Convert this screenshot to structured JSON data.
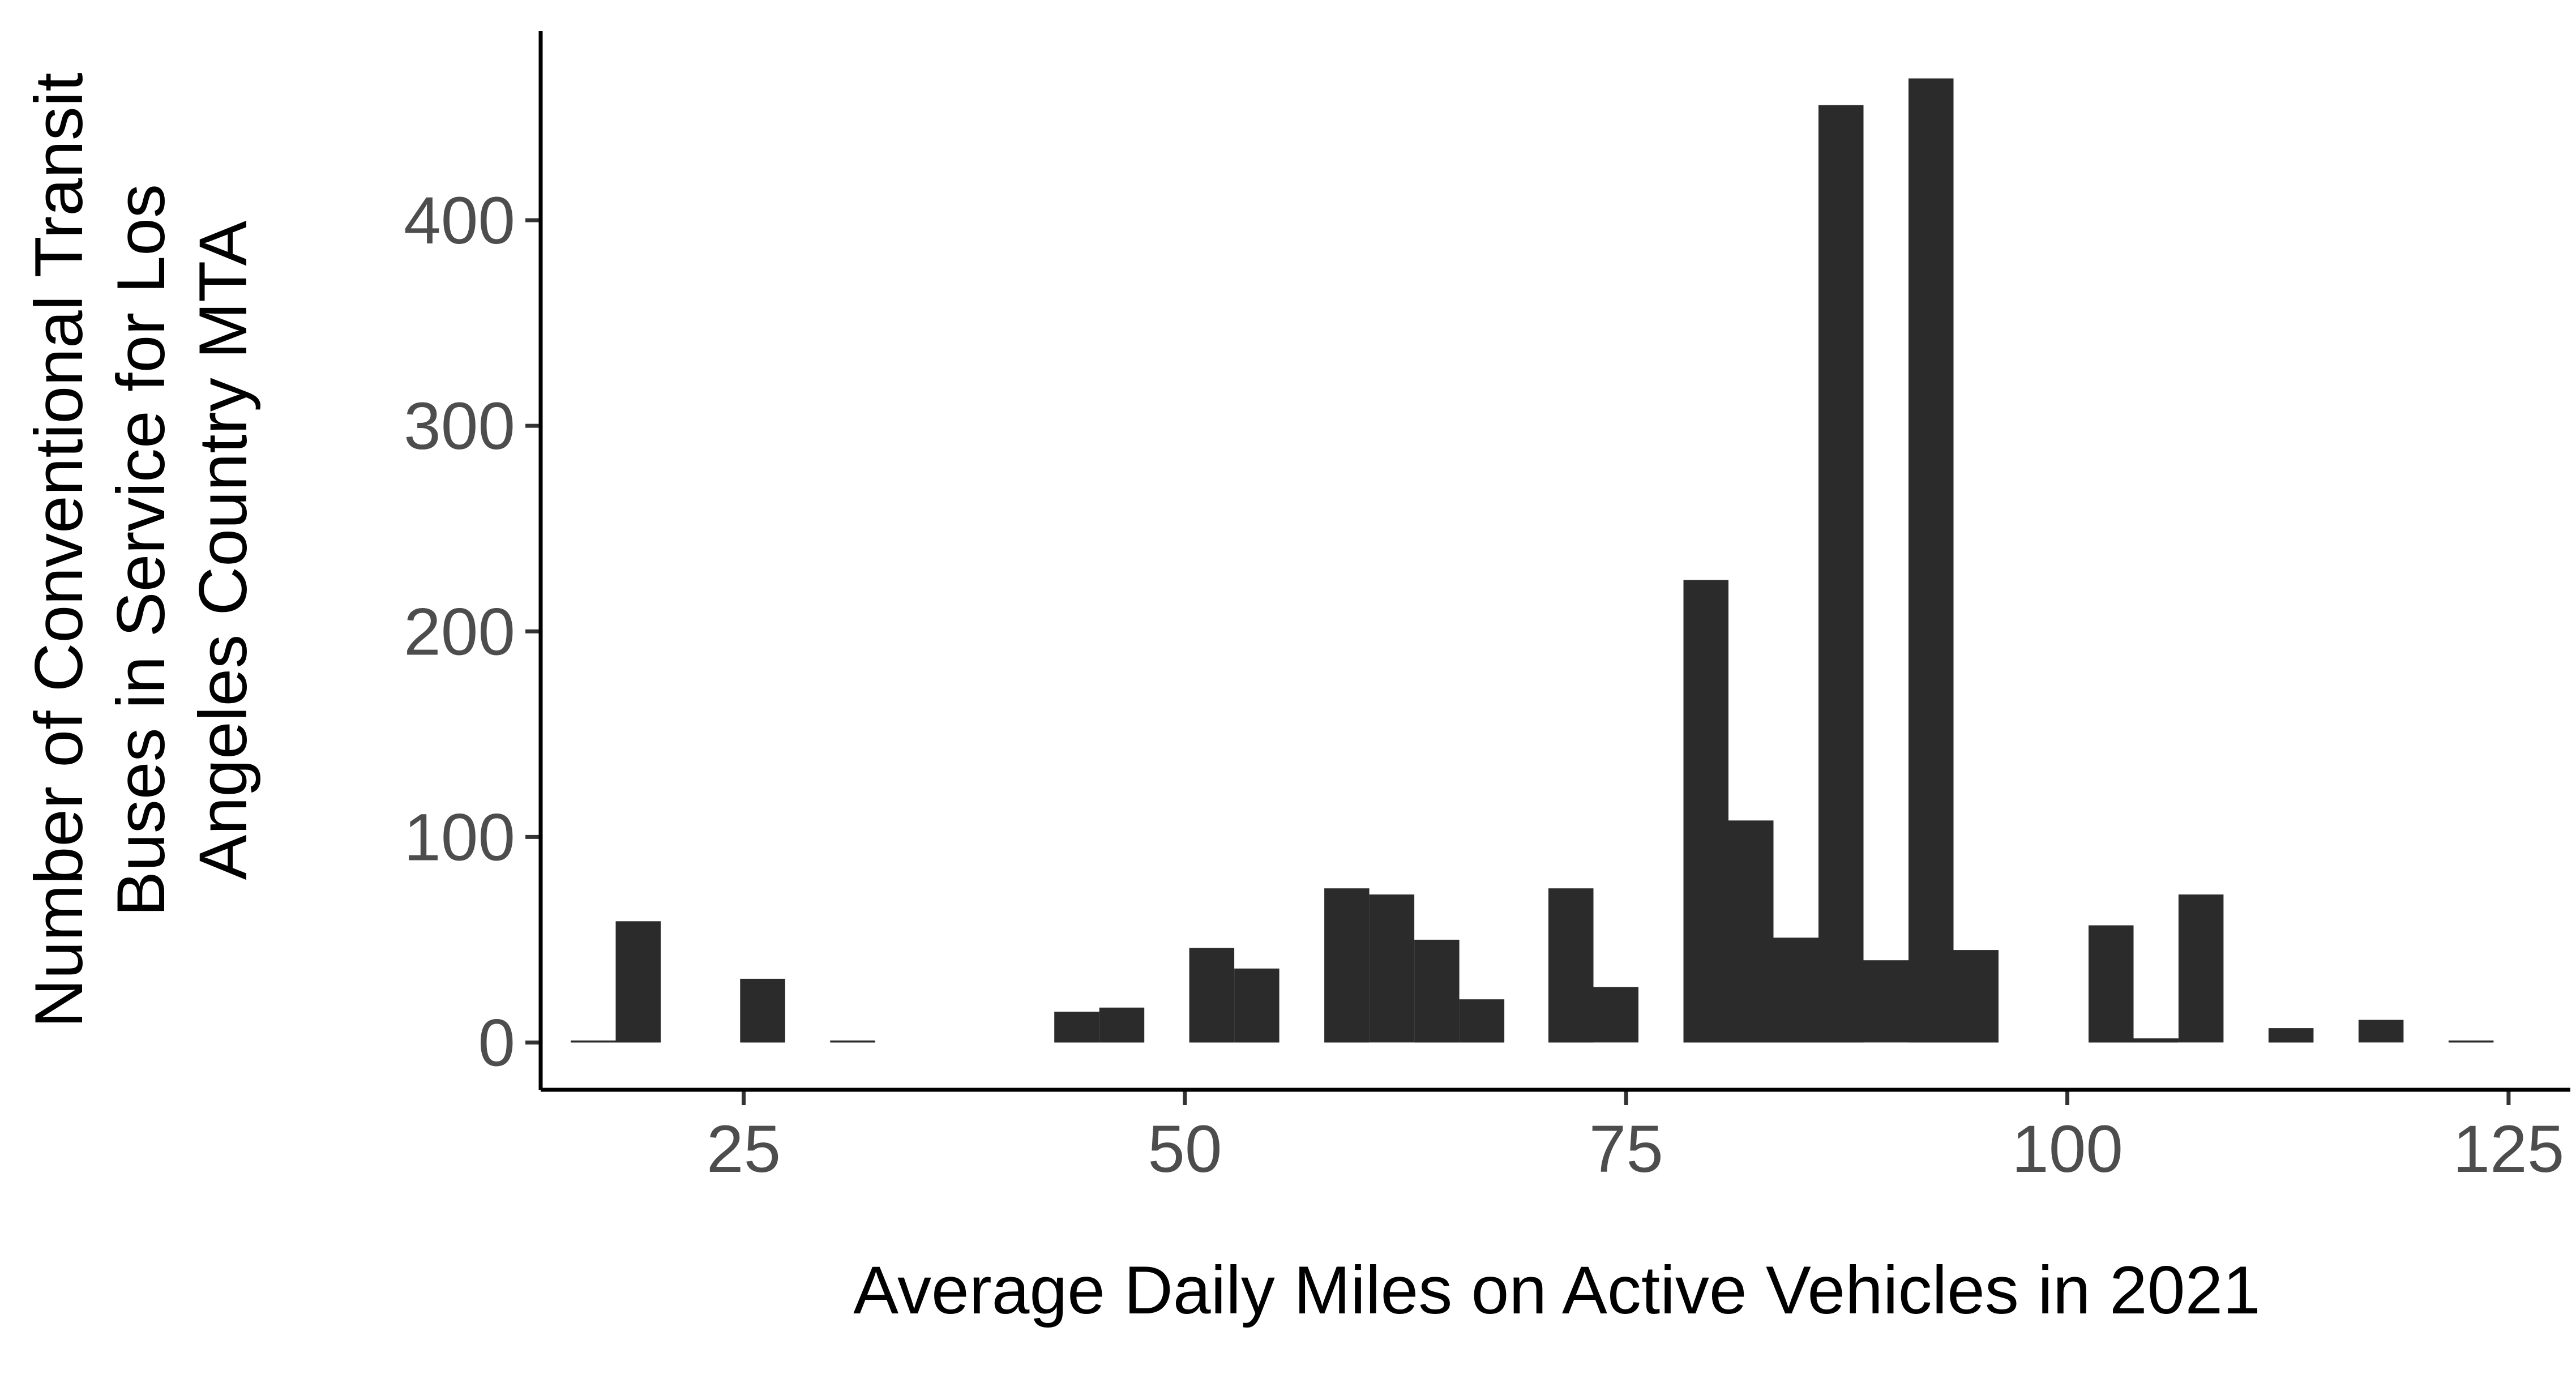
{
  "chart_data": {
    "type": "bar",
    "subtype": "histogram",
    "xlabel": "Average Daily Miles on Active Vehicles in 2021",
    "ylabel_lines": [
      "Number of Conventional Transit",
      "Buses in Service for Los",
      "Angeles Country MTA"
    ],
    "xlim": [
      13.5,
      128.5
    ],
    "ylim": [
      -23,
      492
    ],
    "x_ticks": [
      25,
      50,
      75,
      100,
      125
    ],
    "y_ticks": [
      0,
      100,
      200,
      300,
      400
    ],
    "bin_width": 2.55,
    "bins": [
      {
        "x0": 15.2,
        "value": 1
      },
      {
        "x0": 17.75,
        "value": 59
      },
      {
        "x0": 24.8,
        "value": 31
      },
      {
        "x0": 29.9,
        "value": 1
      },
      {
        "x0": 42.6,
        "value": 15
      },
      {
        "x0": 45.15,
        "value": 17
      },
      {
        "x0": 50.25,
        "value": 46
      },
      {
        "x0": 52.8,
        "value": 36
      },
      {
        "x0": 57.9,
        "value": 75
      },
      {
        "x0": 60.45,
        "value": 72
      },
      {
        "x0": 63.0,
        "value": 50
      },
      {
        "x0": 65.55,
        "value": 21
      },
      {
        "x0": 70.6,
        "value": 75
      },
      {
        "x0": 73.15,
        "value": 27
      },
      {
        "x0": 78.25,
        "value": 225
      },
      {
        "x0": 80.8,
        "value": 108
      },
      {
        "x0": 83.35,
        "value": 51
      },
      {
        "x0": 85.9,
        "value": 456
      },
      {
        "x0": 88.45,
        "value": 40
      },
      {
        "x0": 91.0,
        "value": 469
      },
      {
        "x0": 93.55,
        "value": 45
      },
      {
        "x0": 101.2,
        "value": 57
      },
      {
        "x0": 103.75,
        "value": 2
      },
      {
        "x0": 106.3,
        "value": 72
      },
      {
        "x0": 111.4,
        "value": 7
      },
      {
        "x0": 116.5,
        "value": 11
      },
      {
        "x0": 121.6,
        "value": 1
      }
    ],
    "colors": {
      "bar": "#2b2b2b",
      "axis": "#000000",
      "tick_label": "#4d4d4d"
    },
    "grid": false,
    "legend": "none"
  }
}
